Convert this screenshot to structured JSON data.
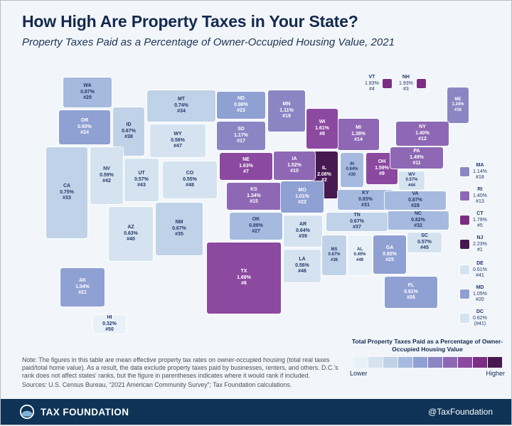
{
  "title": "How High Are Property Taxes in Your State?",
  "subtitle": "Property Taxes Paid as a Percentage of Owner-Occupied Housing Value, 2021",
  "legend": {
    "title": "Total Property Taxes Paid as a Percentage of Owner-Occupied Housing Value",
    "low": "Lower",
    "high": "Higher",
    "colors": [
      "#e9f1f8",
      "#d5e3f0",
      "#c0d2e8",
      "#a6badf",
      "#8fa0d3",
      "#8b86c3",
      "#8e68b4",
      "#8c49a0",
      "#7a2d83",
      "#461a51"
    ]
  },
  "note": "Note: The figures in this table are mean effective property tax rates on owner-occupied housing (total real taxes paid/total home value). As a result, the data exclude property taxes paid by businesses, renters, and others. D.C.'s rank does not affect states' ranks, but the figure in parentheses indicates where it would rank if included.",
  "sources": "Sources: U.S. Census Bureau, “2021 American Community Survey”; Tax Foundation calculations.",
  "footer": {
    "brand": "TAX FOUNDATION",
    "handle": "@TaxFoundation"
  },
  "chart_data": {
    "type": "heatmap",
    "subtype": "us-state-choropleth",
    "title": "How High Are Property Taxes in Your State?",
    "unit": "effective property tax rate, % of owner-occupied housing value, 2021",
    "legend_position": "bottom-right",
    "states": [
      {
        "abbr": "AL",
        "rate": "0.40%",
        "rank": "#49",
        "value": 0.4,
        "bucket": 0
      },
      {
        "abbr": "AK",
        "rate": "1.04%",
        "rank": "#21",
        "value": 1.04,
        "bucket": 4
      },
      {
        "abbr": "AZ",
        "rate": "0.63%",
        "rank": "#40",
        "value": 0.63,
        "bucket": 1
      },
      {
        "abbr": "AR",
        "rate": "0.64%",
        "rank": "#39",
        "value": 0.64,
        "bucket": 1
      },
      {
        "abbr": "CA",
        "rate": "0.75%",
        "rank": "#33",
        "value": 0.75,
        "bucket": 2
      },
      {
        "abbr": "CO",
        "rate": "0.55%",
        "rank": "#48",
        "value": 0.55,
        "bucket": 1
      },
      {
        "abbr": "CT",
        "rate": "1.79%",
        "rank": "#5",
        "value": 1.79,
        "bucket": 8
      },
      {
        "abbr": "DE",
        "rate": "0.61%",
        "rank": "#41",
        "value": 0.61,
        "bucket": 1
      },
      {
        "abbr": "DC",
        "rate": "0.62%",
        "rank": "(#41)",
        "value": 0.62,
        "bucket": 1
      },
      {
        "abbr": "FL",
        "rate": "0.91%",
        "rank": "#26",
        "value": 0.91,
        "bucket": 4
      },
      {
        "abbr": "GA",
        "rate": "0.92%",
        "rank": "#25",
        "value": 0.92,
        "bucket": 4
      },
      {
        "abbr": "HI",
        "rate": "0.32%",
        "rank": "#50",
        "value": 0.32,
        "bucket": 0
      },
      {
        "abbr": "ID",
        "rate": "0.67%",
        "rank": "#38",
        "value": 0.67,
        "bucket": 2
      },
      {
        "abbr": "IL",
        "rate": "2.08%",
        "rank": "#2",
        "value": 2.08,
        "bucket": 9
      },
      {
        "abbr": "IN",
        "rate": "0.84%",
        "rank": "#30",
        "value": 0.84,
        "bucket": 3
      },
      {
        "abbr": "IA",
        "rate": "1.52%",
        "rank": "#10",
        "value": 1.52,
        "bucket": 6
      },
      {
        "abbr": "KS",
        "rate": "1.34%",
        "rank": "#15",
        "value": 1.34,
        "bucket": 6
      },
      {
        "abbr": "KY",
        "rate": "0.83%",
        "rank": "#31",
        "value": 0.83,
        "bucket": 3
      },
      {
        "abbr": "LA",
        "rate": "0.56%",
        "rank": "#46",
        "value": 0.56,
        "bucket": 1
      },
      {
        "abbr": "ME",
        "rate": "1.24%",
        "rank": "#16",
        "value": 1.24,
        "bucket": 5
      },
      {
        "abbr": "MD",
        "rate": "1.05%",
        "rank": "#20",
        "value": 1.05,
        "bucket": 4
      },
      {
        "abbr": "MA",
        "rate": "1.14%",
        "rank": "#18",
        "value": 1.14,
        "bucket": 5
      },
      {
        "abbr": "MI",
        "rate": "1.38%",
        "rank": "#14",
        "value": 1.38,
        "bucket": 6
      },
      {
        "abbr": "MN",
        "rate": "1.11%",
        "rank": "#19",
        "value": 1.11,
        "bucket": 5
      },
      {
        "abbr": "MS",
        "rate": "0.67%",
        "rank": "#36",
        "value": 0.67,
        "bucket": 2
      },
      {
        "abbr": "MO",
        "rate": "1.01%",
        "rank": "#22",
        "value": 1.01,
        "bucket": 4
      },
      {
        "abbr": "MT",
        "rate": "0.74%",
        "rank": "#34",
        "value": 0.74,
        "bucket": 2
      },
      {
        "abbr": "NE",
        "rate": "1.63%",
        "rank": "#7",
        "value": 1.63,
        "bucket": 7
      },
      {
        "abbr": "NV",
        "rate": "0.59%",
        "rank": "#42",
        "value": 0.59,
        "bucket": 1
      },
      {
        "abbr": "NH",
        "rate": "1.93%",
        "rank": "#3",
        "value": 1.93,
        "bucket": 8
      },
      {
        "abbr": "NJ",
        "rate": "2.23%",
        "rank": "#1",
        "value": 2.23,
        "bucket": 9
      },
      {
        "abbr": "NM",
        "rate": "0.67%",
        "rank": "#35",
        "value": 0.67,
        "bucket": 2
      },
      {
        "abbr": "NY",
        "rate": "1.40%",
        "rank": "#12",
        "value": 1.4,
        "bucket": 6
      },
      {
        "abbr": "NC",
        "rate": "0.82%",
        "rank": "#32",
        "value": 0.82,
        "bucket": 3
      },
      {
        "abbr": "ND",
        "rate": "0.98%",
        "rank": "#23",
        "value": 0.98,
        "bucket": 4
      },
      {
        "abbr": "OH",
        "rate": "1.59%",
        "rank": "#9",
        "value": 1.59,
        "bucket": 7
      },
      {
        "abbr": "OK",
        "rate": "0.89%",
        "rank": "#27",
        "value": 0.89,
        "bucket": 3
      },
      {
        "abbr": "OR",
        "rate": "0.93%",
        "rank": "#24",
        "value": 0.93,
        "bucket": 4
      },
      {
        "abbr": "PA",
        "rate": "1.49%",
        "rank": "#11",
        "value": 1.49,
        "bucket": 6
      },
      {
        "abbr": "RI",
        "rate": "1.40%",
        "rank": "#13",
        "value": 1.4,
        "bucket": 6
      },
      {
        "abbr": "SC",
        "rate": "0.57%",
        "rank": "#45",
        "value": 0.57,
        "bucket": 1
      },
      {
        "abbr": "SD",
        "rate": "1.17%",
        "rank": "#17",
        "value": 1.17,
        "bucket": 5
      },
      {
        "abbr": "TN",
        "rate": "0.67%",
        "rank": "#37",
        "value": 0.67,
        "bucket": 2
      },
      {
        "abbr": "TX",
        "rate": "1.68%",
        "rank": "#6",
        "value": 1.68,
        "bucket": 7
      },
      {
        "abbr": "UT",
        "rate": "0.57%",
        "rank": "#43",
        "value": 0.57,
        "bucket": 1
      },
      {
        "abbr": "VT",
        "rate": "1.83%",
        "rank": "#4",
        "value": 1.83,
        "bucket": 8
      },
      {
        "abbr": "VA",
        "rate": "0.87%",
        "rank": "#28",
        "value": 0.87,
        "bucket": 3
      },
      {
        "abbr": "WA",
        "rate": "0.87%",
        "rank": "#29",
        "value": 0.87,
        "bucket": 3
      },
      {
        "abbr": "WV",
        "rate": "0.57%",
        "rank": "#44",
        "value": 0.57,
        "bucket": 1
      },
      {
        "abbr": "WI",
        "rate": "1.61%",
        "rank": "#8",
        "value": 1.61,
        "bucket": 7
      },
      {
        "abbr": "WY",
        "rate": "0.56%",
        "rank": "#47",
        "value": 0.56,
        "bucket": 1
      }
    ]
  }
}
